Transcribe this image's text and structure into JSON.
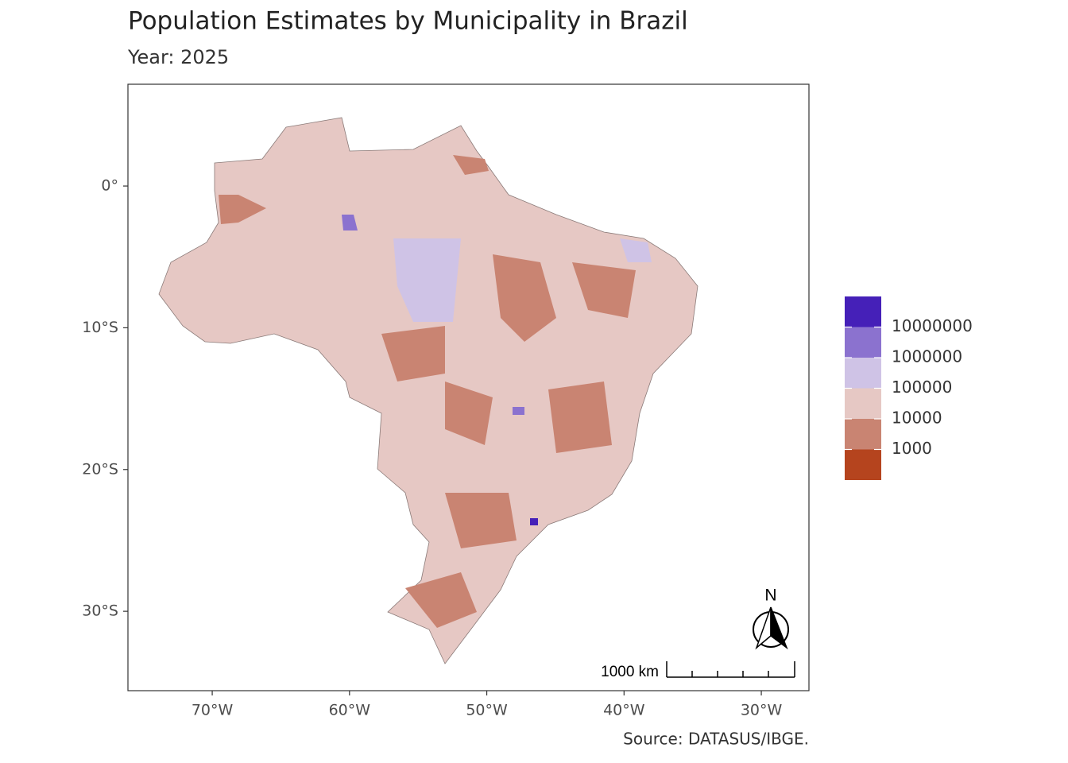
{
  "chart_data": {
    "type": "choropleth",
    "title": "Population Estimates by Municipality in Brazil",
    "subtitle": "Year: 2025",
    "caption": "Source: DATASUS/IBGE.",
    "xlim": [
      -76.14,
      -26.53
    ],
    "ylim": [
      -35.6,
      7.18
    ],
    "xticks": [
      {
        "value": -70,
        "label": "70°W"
      },
      {
        "value": -60,
        "label": "60°W"
      },
      {
        "value": -50,
        "label": "50°W"
      },
      {
        "value": -40,
        "label": "40°W"
      },
      {
        "value": -30,
        "label": "30°W"
      }
    ],
    "yticks": [
      {
        "value": 0,
        "label": "0°"
      },
      {
        "value": -10,
        "label": "10°S"
      },
      {
        "value": -20,
        "label": "20°S"
      },
      {
        "value": -30,
        "label": "30°S"
      }
    ],
    "legend": {
      "breaks": [
        1000,
        10000,
        100000,
        1000000,
        10000000
      ],
      "colors": [
        "#b5441e",
        "#c98472",
        "#e6c8c4",
        "#cfc3e6",
        "#8b72cf",
        "#4520b8"
      ]
    },
    "scale_bar": "1000 km",
    "north_arrow": "N"
  }
}
